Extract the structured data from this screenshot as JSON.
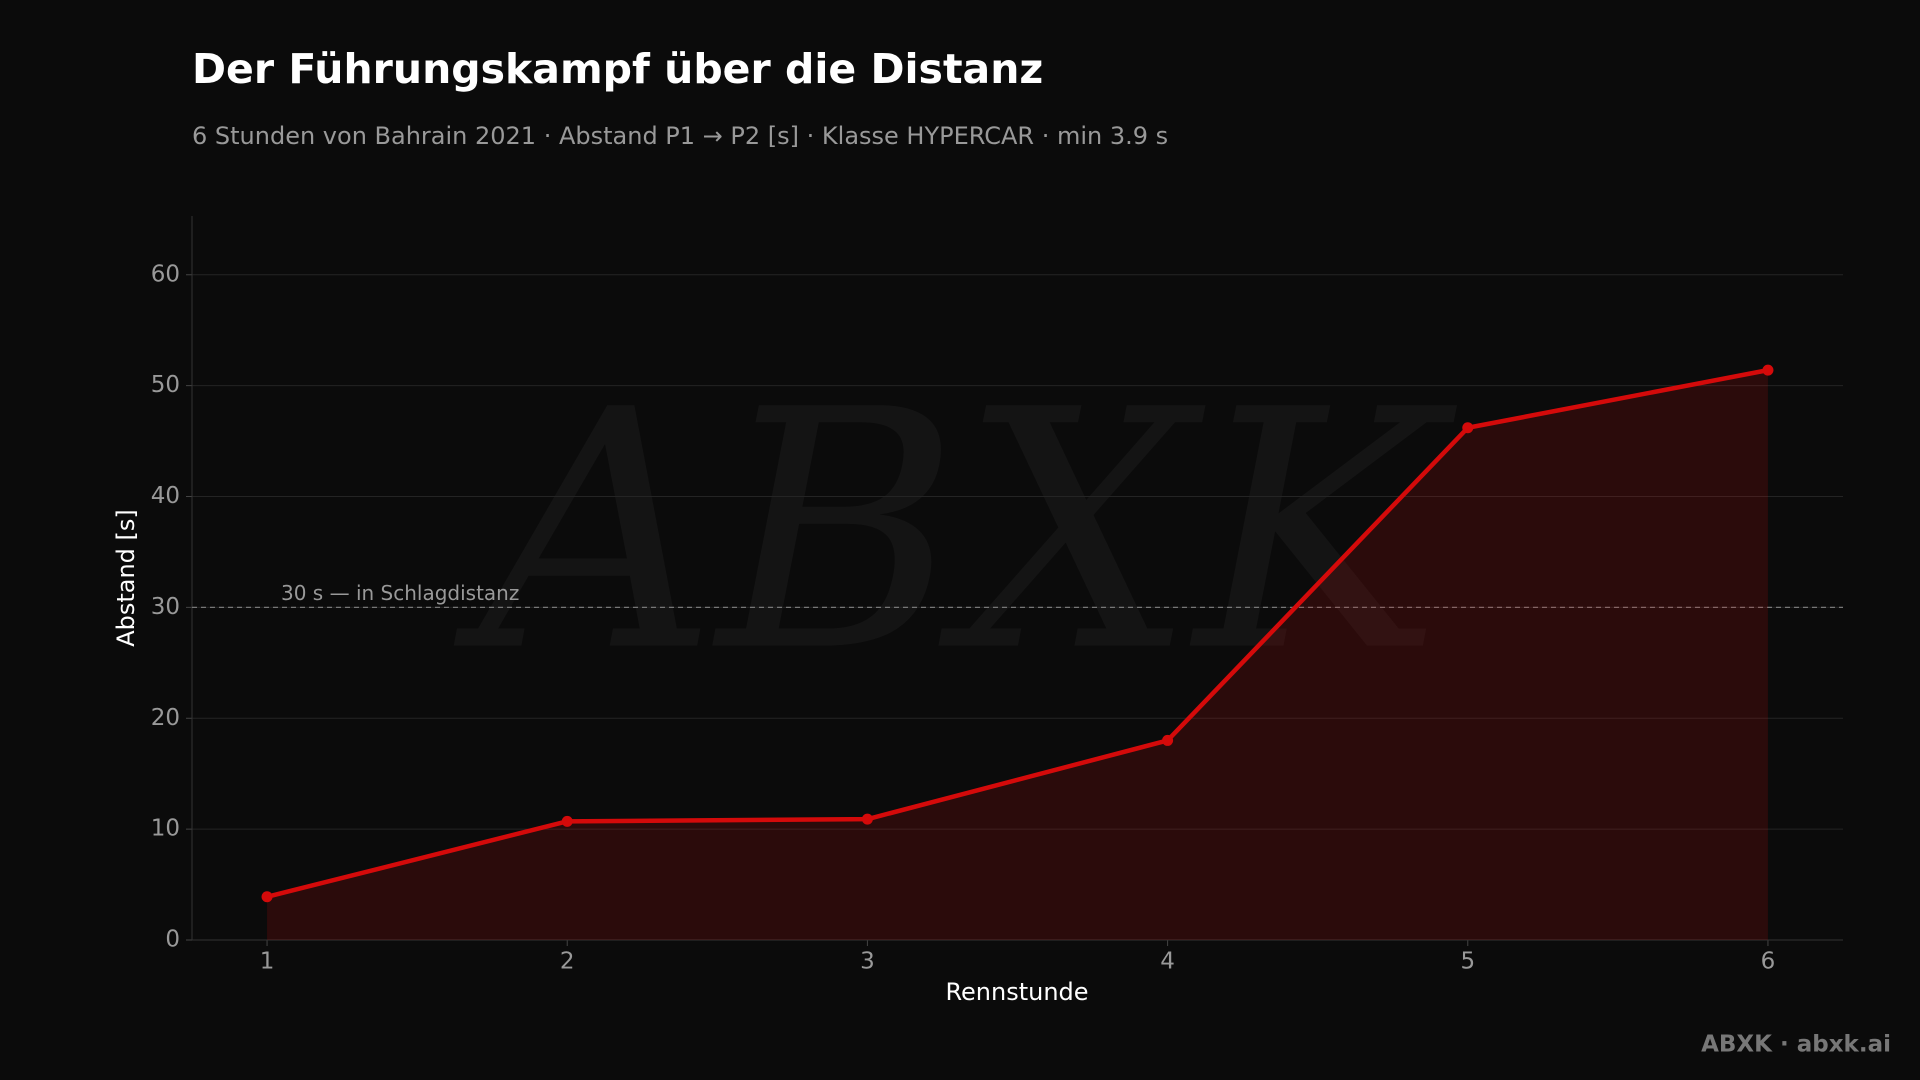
{
  "chart_data": {
    "type": "line",
    "title": "Der Führungskampf über die Distanz",
    "subtitle": "6 Stunden von Bahrain 2021 · Abstand P1 → P2 [s] · Klasse HYPERCAR · min 3.9 s",
    "x_label": "Rennstunde",
    "y_label": "Abstand [s]",
    "x": [
      1,
      2,
      3,
      4,
      5,
      6
    ],
    "series": [
      {
        "name": "Abstand P1 → P2",
        "color": "#d40a0a",
        "values": [
          3.9,
          10.7,
          10.9,
          18.0,
          46.2,
          51.4
        ]
      }
    ],
    "area": true,
    "xlim": [
      0.75,
      6.25
    ],
    "ylim": [
      0,
      65.3
    ],
    "xticks": [
      1,
      2,
      3,
      4,
      5,
      6
    ],
    "yticks": [
      0,
      10,
      20,
      30,
      40,
      50,
      60
    ],
    "grid": true,
    "reference_line": {
      "value": 30,
      "label": "30 s — in Schlagdistanz"
    },
    "watermark": "ABXK",
    "footer": "ABXK · abxk.ai"
  }
}
